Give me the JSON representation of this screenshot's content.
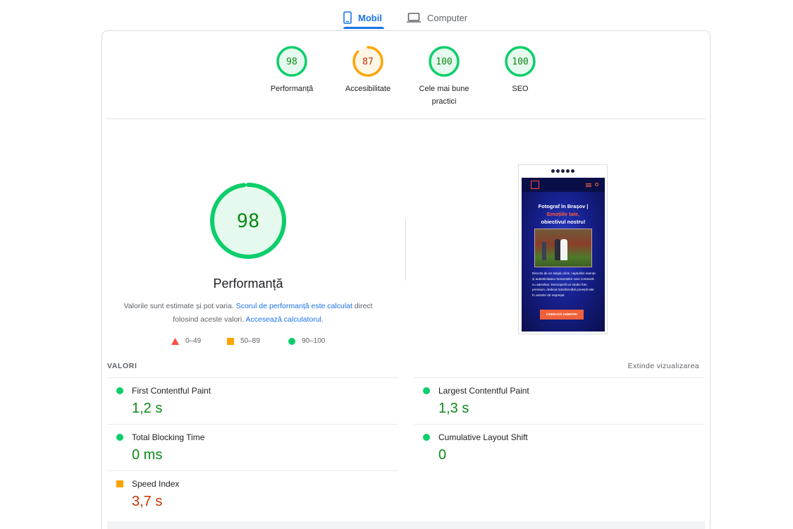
{
  "tabs": {
    "mobile_label": "Mobil",
    "desktop_label": "Computer",
    "active": "mobile"
  },
  "colors": {
    "pass": "#0cce6b",
    "average": "#ffa400",
    "fail": "#ff4e42",
    "link": "#1a73e8"
  },
  "categories": [
    {
      "score": "98",
      "label": "Performanță",
      "level": "pass"
    },
    {
      "score": "87",
      "label": "Accesibilitate",
      "level": "average"
    },
    {
      "score": "100",
      "label": "Cele mai bune practici",
      "level": "pass"
    },
    {
      "score": "100",
      "label": "SEO",
      "level": "pass"
    }
  ],
  "performance": {
    "score": "98",
    "score_fraction": 0.98,
    "title": "Performanță",
    "note_pre": "Valorile sunt estimate și pot varia. ",
    "note_link1": "Scorul de performanță este calculat",
    "note_mid": " direct folosind aceste valori. ",
    "note_link2": "Accesează calculatorul",
    "note_post": "."
  },
  "legend": [
    {
      "range": "0–49",
      "shape": "triangle-icon"
    },
    {
      "range": "50–89",
      "shape": "square-icon"
    },
    {
      "range": "90–100",
      "shape": "circle-icon"
    }
  ],
  "preview": {
    "heading_line1": "Fotograf în Brașov |",
    "heading_highlight": "Emoțiile tale,",
    "heading_line3": "obiectivul nostru!",
    "body_text": "Dincolo de un simplu click, capturăm esența și autenticitatea momentelor care contează cu adevărat. Descoperă un studio foto premium, dedicat transformării poveștii tale în amintiri de neprețuit.",
    "cta": "CREEAZĂ AMINTIRI"
  },
  "metrics_header": {
    "title": "VALORI",
    "expand": "Extinde vizualizarea"
  },
  "metrics": [
    {
      "name": "First Contentful Paint",
      "value": "1,2 s",
      "level": "pass"
    },
    {
      "name": "Largest Contentful Paint",
      "value": "1,3 s",
      "level": "pass"
    },
    {
      "name": "Total Blocking Time",
      "value": "0 ms",
      "level": "pass"
    },
    {
      "name": "Cumulative Layout Shift",
      "value": "0",
      "level": "pass"
    },
    {
      "name": "Speed Index",
      "value": "3,7 s",
      "level": "average"
    }
  ]
}
